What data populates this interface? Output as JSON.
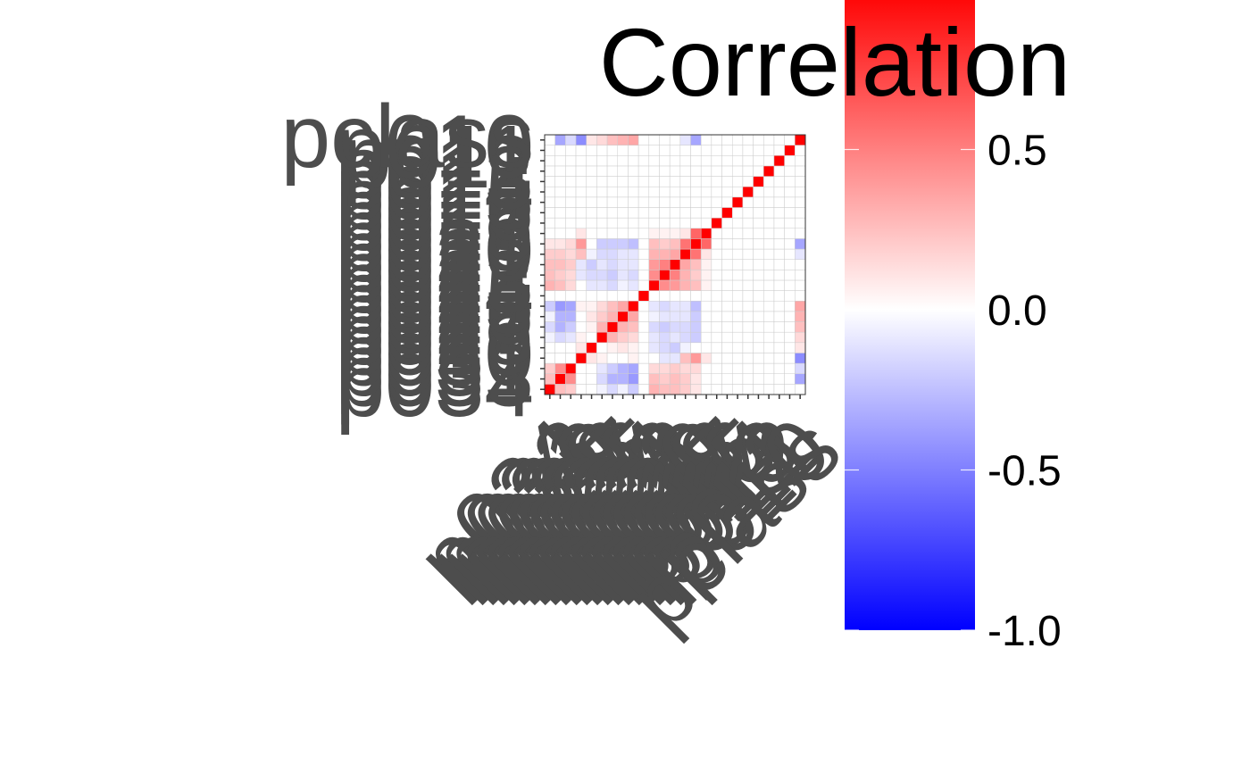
{
  "chart_data": {
    "type": "heatmap",
    "title": "",
    "xlabel": "",
    "ylabel": "",
    "variables": [
      "p034",
      "p033",
      "p031",
      "p030",
      "p029",
      "p028",
      "p027",
      "p026",
      "p025",
      "p024",
      "p023",
      "p022",
      "p021",
      "p020",
      "p019",
      "p018",
      "p017",
      "p016",
      "p015",
      "p014",
      "p013",
      "p012",
      "p011",
      "p010",
      "pclass"
    ],
    "values": [
      [
        1.0,
        0.25,
        0.2,
        0.0,
        0.0,
        -0.05,
        -0.15,
        -0.05,
        -0.2,
        0.0,
        0.3,
        0.25,
        0.25,
        0.2,
        0.1,
        0.0,
        0.0,
        0.0,
        0.0,
        0.0,
        0.0,
        0.0,
        0.0,
        0.0,
        0.0
      ],
      [
        0.25,
        1.0,
        0.45,
        0.0,
        0.0,
        -0.15,
        -0.3,
        -0.3,
        -0.4,
        0.0,
        0.25,
        0.2,
        0.25,
        0.2,
        0.1,
        0.0,
        0.0,
        0.0,
        0.0,
        0.0,
        0.0,
        0.0,
        0.0,
        0.0,
        -0.35
      ],
      [
        0.2,
        0.45,
        1.0,
        0.0,
        0.0,
        -0.1,
        -0.2,
        -0.3,
        -0.35,
        0.0,
        0.15,
        0.15,
        0.2,
        0.15,
        0.15,
        0.0,
        0.0,
        0.0,
        0.0,
        0.0,
        0.0,
        0.0,
        0.0,
        0.0,
        -0.15
      ],
      [
        0.0,
        0.0,
        0.0,
        1.0,
        0.1,
        0.05,
        0.0,
        0.0,
        0.05,
        0.0,
        0.0,
        -0.1,
        -0.1,
        0.25,
        0.4,
        0.1,
        0.0,
        0.0,
        0.0,
        0.0,
        0.0,
        0.0,
        0.0,
        0.0,
        -0.45
      ],
      [
        0.0,
        0.0,
        0.0,
        0.1,
        1.0,
        0.0,
        0.05,
        0.1,
        0.05,
        0.0,
        -0.1,
        -0.15,
        -0.2,
        -0.05,
        0.0,
        0.0,
        0.0,
        0.0,
        0.0,
        0.0,
        0.0,
        0.0,
        0.0,
        0.0,
        0.1
      ],
      [
        -0.05,
        -0.15,
        -0.1,
        0.05,
        0.0,
        1.0,
        0.3,
        0.2,
        0.15,
        0.0,
        -0.1,
        -0.15,
        -0.1,
        -0.15,
        -0.2,
        0.0,
        0.0,
        0.0,
        0.0,
        0.0,
        0.0,
        0.0,
        0.0,
        0.0,
        0.15
      ],
      [
        -0.15,
        -0.3,
        -0.2,
        0.0,
        0.05,
        0.3,
        1.0,
        0.3,
        0.25,
        0.0,
        -0.15,
        -0.2,
        -0.15,
        -0.15,
        -0.2,
        0.0,
        0.0,
        0.0,
        0.0,
        0.0,
        0.0,
        0.0,
        0.0,
        0.0,
        0.25
      ],
      [
        -0.05,
        -0.3,
        -0.3,
        0.0,
        0.1,
        0.2,
        0.3,
        1.0,
        0.35,
        0.0,
        -0.05,
        -0.1,
        -0.1,
        -0.1,
        -0.2,
        0.0,
        0.0,
        0.0,
        0.0,
        0.0,
        0.0,
        0.0,
        0.0,
        0.0,
        0.3
      ],
      [
        -0.2,
        -0.4,
        -0.35,
        0.05,
        0.05,
        0.15,
        0.25,
        0.35,
        1.0,
        0.0,
        -0.1,
        -0.15,
        -0.1,
        -0.1,
        -0.25,
        0.0,
        0.0,
        0.0,
        0.0,
        0.0,
        0.0,
        0.0,
        0.0,
        0.0,
        0.35
      ],
      [
        0.0,
        0.0,
        0.0,
        0.0,
        0.0,
        0.0,
        0.0,
        0.0,
        0.0,
        1.0,
        0.0,
        0.0,
        0.0,
        0.0,
        0.0,
        0.0,
        0.0,
        0.0,
        0.0,
        0.0,
        0.0,
        0.0,
        0.0,
        0.0,
        0.0
      ],
      [
        0.3,
        0.25,
        0.15,
        0.0,
        -0.1,
        -0.1,
        -0.15,
        -0.05,
        -0.1,
        0.0,
        1.0,
        0.45,
        0.4,
        0.3,
        0.25,
        0.05,
        0.0,
        0.0,
        0.0,
        0.0,
        0.0,
        0.0,
        0.0,
        0.0,
        0.0
      ],
      [
        0.25,
        0.2,
        0.15,
        -0.1,
        -0.15,
        -0.15,
        -0.2,
        -0.1,
        -0.15,
        0.0,
        0.45,
        1.0,
        0.5,
        0.3,
        0.2,
        0.05,
        0.0,
        0.0,
        0.0,
        0.0,
        0.0,
        0.0,
        0.0,
        0.0,
        0.0
      ],
      [
        0.25,
        0.25,
        0.2,
        -0.1,
        -0.2,
        -0.1,
        -0.15,
        -0.1,
        -0.1,
        0.0,
        0.4,
        0.5,
        1.0,
        0.35,
        0.25,
        0.05,
        0.0,
        0.0,
        0.0,
        0.0,
        0.0,
        0.0,
        0.0,
        0.0,
        0.0
      ],
      [
        0.2,
        0.2,
        0.15,
        0.25,
        -0.05,
        -0.15,
        -0.15,
        -0.1,
        -0.1,
        0.0,
        0.3,
        0.3,
        0.35,
        1.0,
        0.55,
        0.1,
        0.0,
        0.0,
        0.0,
        0.0,
        0.0,
        0.0,
        0.0,
        0.0,
        -0.1
      ],
      [
        0.1,
        0.1,
        0.15,
        0.4,
        0.0,
        -0.2,
        -0.2,
        -0.2,
        -0.25,
        0.0,
        0.25,
        0.2,
        0.25,
        0.55,
        1.0,
        0.6,
        0.0,
        0.0,
        0.0,
        0.0,
        0.0,
        0.0,
        0.0,
        0.0,
        -0.35
      ],
      [
        0.0,
        0.0,
        0.0,
        0.1,
        0.0,
        0.0,
        0.0,
        0.0,
        0.0,
        0.0,
        0.05,
        0.05,
        0.05,
        0.1,
        0.6,
        1.0,
        0.0,
        0.0,
        0.0,
        0.0,
        0.0,
        0.0,
        0.0,
        0.0,
        0.0
      ],
      [
        0.0,
        0.0,
        0.0,
        0.0,
        0.0,
        0.0,
        0.0,
        0.0,
        0.0,
        0.0,
        0.0,
        0.0,
        0.0,
        0.0,
        0.0,
        0.0,
        1.0,
        0.0,
        0.0,
        0.0,
        0.0,
        0.0,
        0.0,
        0.0,
        0.0
      ],
      [
        0.0,
        0.0,
        0.0,
        0.0,
        0.0,
        0.0,
        0.0,
        0.0,
        0.0,
        0.0,
        0.0,
        0.0,
        0.0,
        0.0,
        0.0,
        0.0,
        0.0,
        1.0,
        0.0,
        0.0,
        0.0,
        0.0,
        0.0,
        0.0,
        0.0
      ],
      [
        0.0,
        0.0,
        0.0,
        0.0,
        0.0,
        0.0,
        0.0,
        0.0,
        0.0,
        0.0,
        0.0,
        0.0,
        0.0,
        0.0,
        0.0,
        0.0,
        0.0,
        0.0,
        1.0,
        0.0,
        0.0,
        0.0,
        0.0,
        0.0,
        0.0
      ],
      [
        0.0,
        0.0,
        0.0,
        0.0,
        0.0,
        0.0,
        0.0,
        0.0,
        0.0,
        0.0,
        0.0,
        0.0,
        0.0,
        0.0,
        0.0,
        0.0,
        0.0,
        0.0,
        0.0,
        1.0,
        0.0,
        0.0,
        0.0,
        0.0,
        0.0
      ],
      [
        0.0,
        0.0,
        0.0,
        0.0,
        0.0,
        0.0,
        0.0,
        0.0,
        0.0,
        0.0,
        0.0,
        0.0,
        0.0,
        0.0,
        0.0,
        0.0,
        0.0,
        0.0,
        0.0,
        0.0,
        1.0,
        0.0,
        0.0,
        0.0,
        0.0
      ],
      [
        0.0,
        0.0,
        0.0,
        0.0,
        0.0,
        0.0,
        0.0,
        0.0,
        0.0,
        0.0,
        0.0,
        0.0,
        0.0,
        0.0,
        0.0,
        0.0,
        0.0,
        0.0,
        0.0,
        0.0,
        0.0,
        1.0,
        0.0,
        0.0,
        0.0
      ],
      [
        0.0,
        0.0,
        0.0,
        0.0,
        0.0,
        0.0,
        0.0,
        0.0,
        0.0,
        0.0,
        0.0,
        0.0,
        0.0,
        0.0,
        0.0,
        0.0,
        0.0,
        0.0,
        0.0,
        0.0,
        0.0,
        0.0,
        1.0,
        0.0,
        0.0
      ],
      [
        0.0,
        0.0,
        0.0,
        0.0,
        0.0,
        0.0,
        0.0,
        0.0,
        0.0,
        0.0,
        0.0,
        0.0,
        0.0,
        0.0,
        0.0,
        0.0,
        0.0,
        0.0,
        0.0,
        0.0,
        0.0,
        0.0,
        0.0,
        1.0,
        0.0
      ],
      [
        0.0,
        -0.35,
        -0.15,
        -0.45,
        0.1,
        0.15,
        0.25,
        0.3,
        0.35,
        0.0,
        0.0,
        0.0,
        0.0,
        -0.1,
        -0.35,
        0.0,
        0.0,
        0.0,
        0.0,
        0.0,
        0.0,
        0.0,
        0.0,
        0.0,
        1.0
      ]
    ],
    "legend": {
      "title": "Correlation",
      "range": [
        -1,
        1
      ],
      "ticks": [
        0.5,
        0.0,
        -0.5,
        -1.0
      ],
      "tick_labels": [
        "0.5",
        "0.0",
        "-0.5",
        "-1.0"
      ],
      "colors": {
        "low": "#0000FF",
        "mid": "#FFFFFF",
        "high": "#FF0000"
      },
      "placement": "right"
    },
    "colors": {
      "axis_text": "#4d4d4d",
      "grid": "#cccccc",
      "panel_border": "#333333"
    }
  }
}
